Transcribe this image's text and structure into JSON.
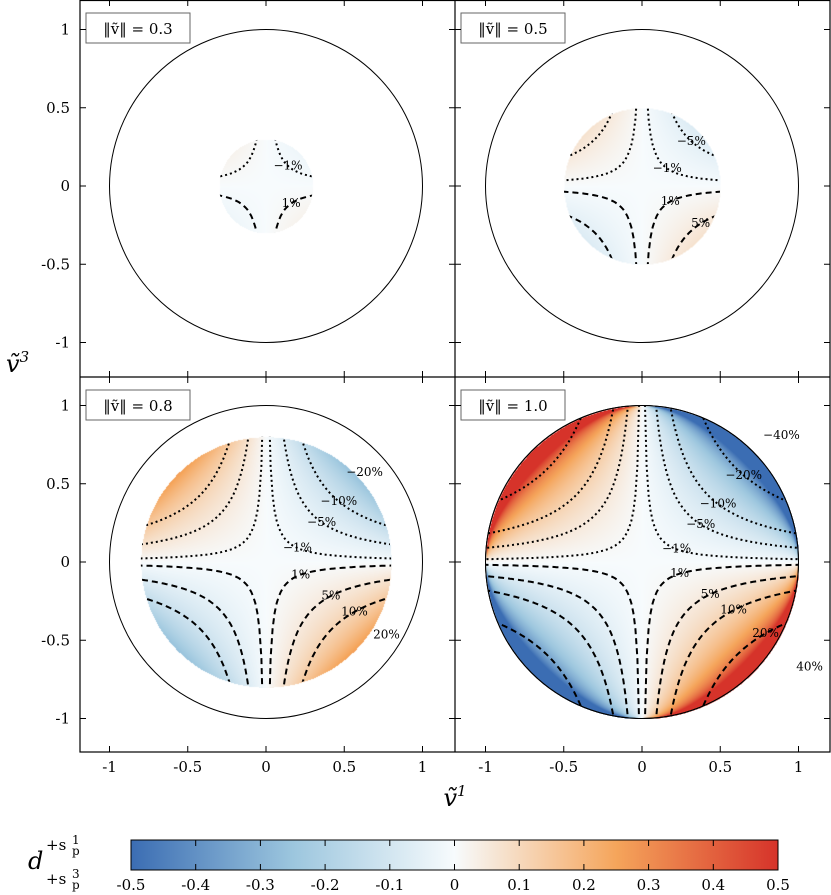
{
  "chart_data": {
    "type": "heatmap",
    "panels": [
      {
        "label": "‖ṽ‖ = 0.3",
        "radius": 0.3,
        "contours": [
          {
            "level": "−1%",
            "value": -0.01,
            "style": "dashed"
          },
          {
            "level": "1%",
            "value": 0.01,
            "style": "dotted"
          }
        ]
      },
      {
        "label": "‖ṽ‖ = 0.5",
        "radius": 0.5,
        "contours": [
          {
            "level": "−5%",
            "value": -0.05
          },
          {
            "level": "−1%",
            "value": -0.01
          },
          {
            "level": "1%",
            "value": 0.01
          },
          {
            "level": "5%",
            "value": 0.05
          }
        ]
      },
      {
        "label": "‖ṽ‖ = 0.8",
        "radius": 0.8,
        "contours": [
          {
            "level": "−20%",
            "value": -0.2
          },
          {
            "level": "−10%",
            "value": -0.1
          },
          {
            "level": "−5%",
            "value": -0.05
          },
          {
            "level": "−1%",
            "value": -0.01
          },
          {
            "level": "1%",
            "value": 0.01
          },
          {
            "level": "5%",
            "value": 0.05
          },
          {
            "level": "10%",
            "value": 0.1
          },
          {
            "level": "20%",
            "value": 0.2
          }
        ]
      },
      {
        "label": "‖ṽ‖ = 1.0",
        "radius": 1.0,
        "contours": [
          {
            "level": "−40%",
            "value": -0.4
          },
          {
            "level": "−20%",
            "value": -0.2
          },
          {
            "level": "−10%",
            "value": -0.1
          },
          {
            "level": "−5%",
            "value": -0.05
          },
          {
            "level": "−1%",
            "value": -0.01
          },
          {
            "level": "1%",
            "value": 0.01
          },
          {
            "level": "5%",
            "value": 0.05
          },
          {
            "level": "10%",
            "value": 0.1
          },
          {
            "level": "20%",
            "value": 0.2
          },
          {
            "level": "40%",
            "value": 0.4
          }
        ]
      }
    ],
    "xlabel": "ṽ",
    "xlabel_sup": "1",
    "ylabel": "ṽ",
    "ylabel_sup": "3",
    "xlim": [
      -1.2,
      1.2
    ],
    "ylim": [
      -1.2,
      1.2
    ],
    "xticks": [
      "-1",
      "-0.5",
      "0",
      "0.5",
      "1"
    ],
    "yticks": [
      "1",
      "0.5",
      "0",
      "-0.5",
      "-1"
    ],
    "unit_circle": true,
    "colorbar": {
      "label": "d",
      "label_sup": "+s",
      "label_sup_sub": "p",
      "label_sup_sup": "1",
      "label_sub": "+s",
      "label_sub_sub": "p",
      "label_sub_sup": "3",
      "range": [
        -0.5,
        0.5
      ],
      "ticks": [
        "-0.5",
        "-0.4",
        "-0.3",
        "-0.2",
        "-0.1",
        "0",
        "0.1",
        "0.2",
        "0.3",
        "0.4",
        "0.5"
      ],
      "colors": [
        "#3b6db3",
        "#9cc6de",
        "#f7fbfd",
        "#f5a55b",
        "#d6332a"
      ]
    }
  }
}
